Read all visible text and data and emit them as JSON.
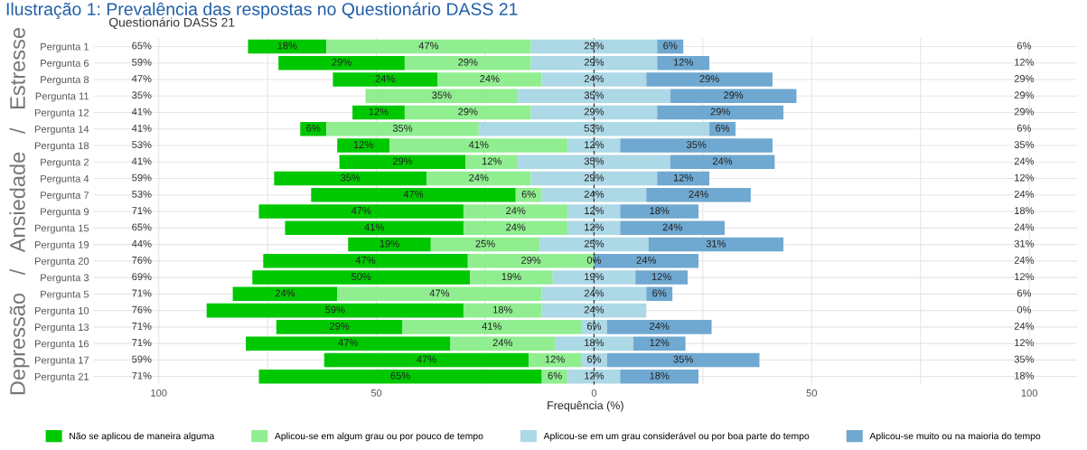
{
  "chart_data": {
    "type": "bar",
    "orientation": "horizontal",
    "title": "Ilustração 1: Prevalência das respostas no Questionário DASS 21",
    "subtitle": "Questionário DASS 21",
    "xlabel": "Frequência (%)",
    "ylabel": "Depressão   /   Ansiedade   /   Estresse",
    "categories": [
      "Pergunta 1",
      "Pergunta 6",
      "Pergunta 8",
      "Pergunta 11",
      "Pergunta 12",
      "Pergunta 14",
      "Pergunta 18",
      "Pergunta 2",
      "Pergunta 4",
      "Pergunta 7",
      "Pergunta 9",
      "Pergunta 15",
      "Pergunta 19",
      "Pergunta 20",
      "Pergunta 3",
      "Pergunta 5",
      "Pergunta 10",
      "Pergunta 13",
      "Pergunta 16",
      "Pergunta 17",
      "Pergunta 21"
    ],
    "series": [
      {
        "name": "Não se aplicou de maneira alguma",
        "color": "#00c800",
        "base": [
          -79.5,
          -72.5,
          -60,
          null,
          -55.5,
          -67.5,
          -59,
          -58.5,
          -73.5,
          -65,
          -77,
          -71,
          -56.5,
          -76,
          -78.5,
          -83,
          -89,
          -73,
          -80,
          -62,
          -77
        ],
        "values": [
          18,
          29,
          24,
          null,
          12,
          6,
          12,
          29,
          35,
          47,
          47,
          41,
          19,
          47,
          50,
          24,
          59,
          29,
          47,
          47,
          65
        ],
        "value_labels": [
          "18%",
          "29%",
          "24%",
          null,
          "12%",
          "6%",
          "12%",
          "29%",
          "35%",
          "47%",
          "47%",
          "41%",
          "19%",
          "47%",
          "50%",
          "24%",
          "59%",
          "29%",
          "47%",
          "47%",
          "65%"
        ]
      },
      {
        "name": "Aplicou-se em algum grau ou por pouco de tempo",
        "color": "#90ee90",
        "base": [
          -61.5,
          -43.5,
          -36,
          -52.5,
          -43.5,
          -61.5,
          -47,
          -29.5,
          -38.5,
          -18,
          -30,
          -30,
          -37.5,
          -29,
          -28.5,
          -59,
          -30,
          -44,
          -33,
          -15,
          -12
        ],
        "values": [
          47,
          29,
          24,
          35,
          29,
          35,
          41,
          12,
          24,
          6,
          24,
          24,
          25,
          29,
          19,
          47,
          18,
          41,
          24,
          12,
          6
        ],
        "value_labels": [
          "47%",
          "29%",
          "24%",
          "35%",
          "29%",
          "35%",
          "41%",
          "12%",
          "24%",
          "6%",
          "24%",
          "24%",
          "25%",
          "29%",
          "19%",
          "47%",
          "18%",
          "41%",
          "24%",
          "12%",
          "6%"
        ]
      },
      {
        "name": "Aplicou-se em um grau considerável ou por boa parte do tempo",
        "color": "#add8e6",
        "base": [
          -14.5,
          -14.5,
          -12,
          -17.5,
          -14.5,
          -26.5,
          -6,
          -17.5,
          -14.5,
          -12,
          -6,
          -6,
          -12.5,
          null,
          -9.5,
          -12,
          -12,
          -3,
          -9,
          -3,
          -6
        ],
        "values": [
          29,
          29,
          24,
          35,
          29,
          53,
          12,
          35,
          29,
          24,
          12,
          12,
          25,
          0,
          19,
          24,
          24,
          6,
          18,
          6,
          12
        ],
        "value_labels": [
          "29%",
          "29%",
          "24%",
          "35%",
          "29%",
          "53%",
          "12%",
          "35%",
          "29%",
          "24%",
          "12%",
          "12%",
          "25%",
          "0%",
          "19%",
          "24%",
          "24%",
          "6%",
          "18%",
          "6%",
          "12%"
        ]
      },
      {
        "name": "Aplicou-se muito ou na maioria do tempo",
        "color": "#6fa8d0",
        "base": [
          14.5,
          14.5,
          12,
          17.5,
          14.5,
          26.5,
          6,
          17.5,
          14.5,
          12,
          6,
          6,
          12.5,
          0,
          9.5,
          12,
          null,
          3,
          9,
          3,
          6
        ],
        "values": [
          6,
          12,
          29,
          29,
          29,
          6,
          35,
          24,
          12,
          24,
          18,
          24,
          31,
          24,
          12,
          6,
          null,
          24,
          12,
          35,
          18
        ],
        "value_labels": [
          "6%",
          "12%",
          "29%",
          "29%",
          "29%",
          "6%",
          "35%",
          "24%",
          "12%",
          "24%",
          "18%",
          "24%",
          "31%",
          "24%",
          "12%",
          "6%",
          null,
          "24%",
          "12%",
          "35%",
          "18%"
        ]
      }
    ],
    "xlim": [
      -115,
      111
    ],
    "xticks": [
      {
        "value": -100,
        "label": "100"
      },
      {
        "value": -75,
        "label": null
      },
      {
        "value": -50,
        "label": "50"
      },
      {
        "value": -25,
        "label": null
      },
      0,
      {
        "value": 25,
        "label": null
      },
      50,
      {
        "value": 75,
        "label": null
      },
      100
    ],
    "ref_lines": [
      {
        "axis": "x",
        "value": 0,
        "label": null,
        "color": "#333333",
        "line_style": "dashed"
      }
    ],
    "grid": true,
    "legend": "bottom",
    "annotations": [
      "65%",
      "6%",
      "59%",
      "12%",
      "47%",
      "29%",
      "35%",
      "29%",
      "41%",
      "29%",
      "41%",
      "6%",
      "53%",
      "35%",
      "41%",
      "24%",
      "59%",
      "12%",
      "53%",
      "24%",
      "71%",
      "18%",
      "65%",
      "24%",
      "44%",
      "31%",
      "76%",
      "24%",
      "69%",
      "12%",
      "71%",
      "6%",
      "76%",
      "0%",
      "71%",
      "24%",
      "71%",
      "12%",
      "59%",
      "35%",
      "71%",
      "18%"
    ]
  }
}
